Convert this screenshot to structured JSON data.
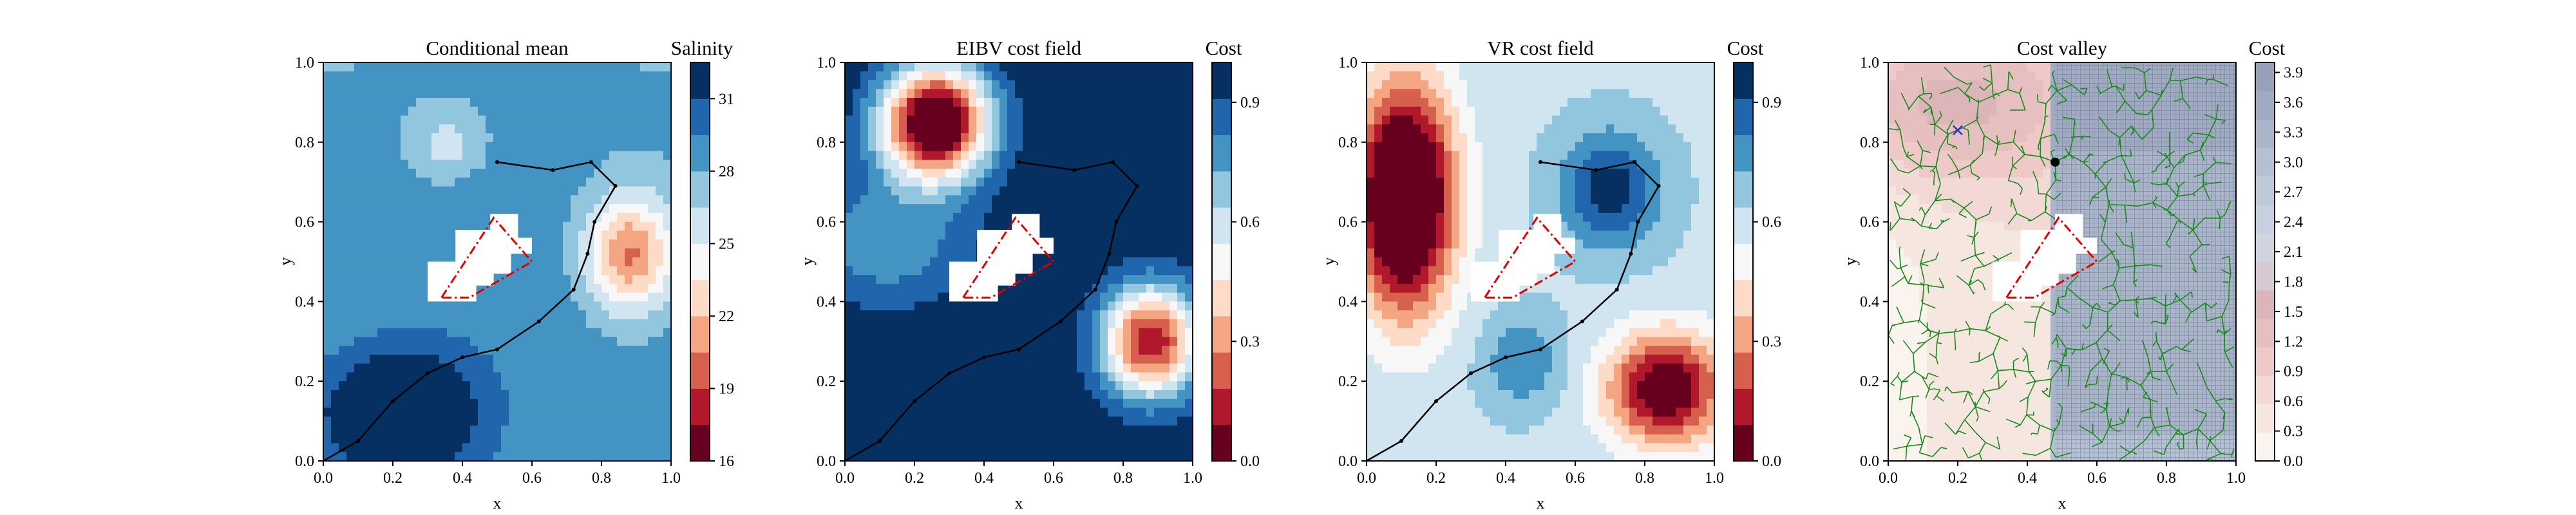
{
  "chart_data": [
    {
      "type": "heatmap",
      "title": "Conditional mean",
      "xlabel": "x",
      "ylabel": "y",
      "xlim": [
        0,
        1
      ],
      "ylim": [
        0,
        1
      ],
      "xticks": [
        "0.0",
        "0.2",
        "0.4",
        "0.6",
        "0.8",
        "1.0"
      ],
      "yticks": [
        "0.0",
        "0.2",
        "0.4",
        "0.6",
        "0.8",
        "1.0"
      ],
      "colorbar": {
        "label": "Salinity",
        "range": [
          16,
          32.5
        ],
        "levels": 11,
        "ticks": [
          "16",
          "19",
          "22",
          "25",
          "28",
          "31"
        ],
        "tick_values": [
          16,
          19,
          22,
          25,
          28,
          31
        ]
      },
      "path": [
        [
          0.0,
          0.0
        ],
        [
          0.1,
          0.05
        ],
        [
          0.2,
          0.15
        ],
        [
          0.3,
          0.22
        ],
        [
          0.4,
          0.26
        ],
        [
          0.5,
          0.28
        ],
        [
          0.62,
          0.35
        ],
        [
          0.72,
          0.43
        ],
        [
          0.76,
          0.52
        ],
        [
          0.78,
          0.6
        ],
        [
          0.84,
          0.69
        ],
        [
          0.77,
          0.75
        ],
        [
          0.66,
          0.73
        ],
        [
          0.5,
          0.75
        ]
      ],
      "obstacle": [
        [
          0.34,
          0.41
        ],
        [
          0.49,
          0.61
        ],
        [
          0.6,
          0.5
        ],
        [
          0.42,
          0.41
        ]
      ]
    },
    {
      "type": "heatmap",
      "title": "EIBV cost field",
      "xlabel": "x",
      "ylabel": "y",
      "xlim": [
        0,
        1
      ],
      "ylim": [
        0,
        1
      ],
      "xticks": [
        "0.0",
        "0.2",
        "0.4",
        "0.6",
        "0.8",
        "1.0"
      ],
      "yticks": [
        "0.0",
        "0.2",
        "0.4",
        "0.6",
        "0.8",
        "1.0"
      ],
      "colorbar": {
        "label": "Cost",
        "range": [
          0,
          1
        ],
        "levels": 11,
        "ticks": [
          "0.0",
          "0.3",
          "0.6",
          "0.9"
        ],
        "tick_values": [
          0,
          0.3,
          0.6,
          0.9
        ]
      },
      "path": [
        [
          0.0,
          0.0
        ],
        [
          0.1,
          0.05
        ],
        [
          0.2,
          0.15
        ],
        [
          0.3,
          0.22
        ],
        [
          0.4,
          0.26
        ],
        [
          0.5,
          0.28
        ],
        [
          0.62,
          0.35
        ],
        [
          0.72,
          0.43
        ],
        [
          0.76,
          0.52
        ],
        [
          0.78,
          0.6
        ],
        [
          0.84,
          0.69
        ],
        [
          0.77,
          0.75
        ],
        [
          0.66,
          0.73
        ],
        [
          0.5,
          0.75
        ]
      ],
      "obstacle": [
        [
          0.34,
          0.41
        ],
        [
          0.49,
          0.61
        ],
        [
          0.6,
          0.5
        ],
        [
          0.42,
          0.41
        ]
      ]
    },
    {
      "type": "heatmap",
      "title": "VR cost field",
      "xlabel": "x",
      "ylabel": "y",
      "xlim": [
        0,
        1
      ],
      "ylim": [
        0,
        1
      ],
      "xticks": [
        "0.0",
        "0.2",
        "0.4",
        "0.6",
        "0.8",
        "1.0"
      ],
      "yticks": [
        "0.0",
        "0.2",
        "0.4",
        "0.6",
        "0.8",
        "1.0"
      ],
      "colorbar": {
        "label": "Cost",
        "range": [
          0,
          1
        ],
        "levels": 11,
        "ticks": [
          "0.0",
          "0.3",
          "0.6",
          "0.9"
        ],
        "tick_values": [
          0,
          0.3,
          0.6,
          0.9
        ]
      },
      "path": [
        [
          0.0,
          0.0
        ],
        [
          0.1,
          0.05
        ],
        [
          0.2,
          0.15
        ],
        [
          0.3,
          0.22
        ],
        [
          0.4,
          0.26
        ],
        [
          0.5,
          0.28
        ],
        [
          0.62,
          0.35
        ],
        [
          0.72,
          0.43
        ],
        [
          0.76,
          0.52
        ],
        [
          0.78,
          0.6
        ],
        [
          0.84,
          0.69
        ],
        [
          0.77,
          0.75
        ],
        [
          0.66,
          0.73
        ],
        [
          0.5,
          0.75
        ]
      ],
      "obstacle": [
        [
          0.34,
          0.41
        ],
        [
          0.49,
          0.61
        ],
        [
          0.6,
          0.5
        ],
        [
          0.42,
          0.41
        ]
      ]
    },
    {
      "type": "heatmap",
      "title": "Cost valley",
      "xlabel": "x",
      "ylabel": "y",
      "xlim": [
        0,
        1
      ],
      "ylim": [
        0,
        1
      ],
      "xticks": [
        "0.0",
        "0.2",
        "0.4",
        "0.6",
        "0.8",
        "1.0"
      ],
      "yticks": [
        "0.0",
        "0.2",
        "0.4",
        "0.6",
        "0.8",
        "1.0"
      ],
      "colorbar": {
        "label": "Cost",
        "range": [
          0,
          4
        ],
        "levels": 14,
        "ticks": [
          "0.0",
          "0.3",
          "0.6",
          "0.9",
          "1.2",
          "1.5",
          "1.8",
          "2.1",
          "2.4",
          "2.7",
          "3.0",
          "3.3",
          "3.6",
          "3.9"
        ],
        "tick_values": [
          0,
          0.3,
          0.6,
          0.9,
          1.2,
          1.5,
          1.8,
          2.1,
          2.4,
          2.7,
          3.0,
          3.3,
          3.6,
          3.9
        ]
      },
      "tree_root": [
        0.48,
        0.75
      ],
      "target": [
        0.2,
        0.83
      ],
      "obstacle": [
        [
          0.34,
          0.41
        ],
        [
          0.49,
          0.61
        ],
        [
          0.6,
          0.5
        ],
        [
          0.42,
          0.41
        ]
      ]
    }
  ]
}
